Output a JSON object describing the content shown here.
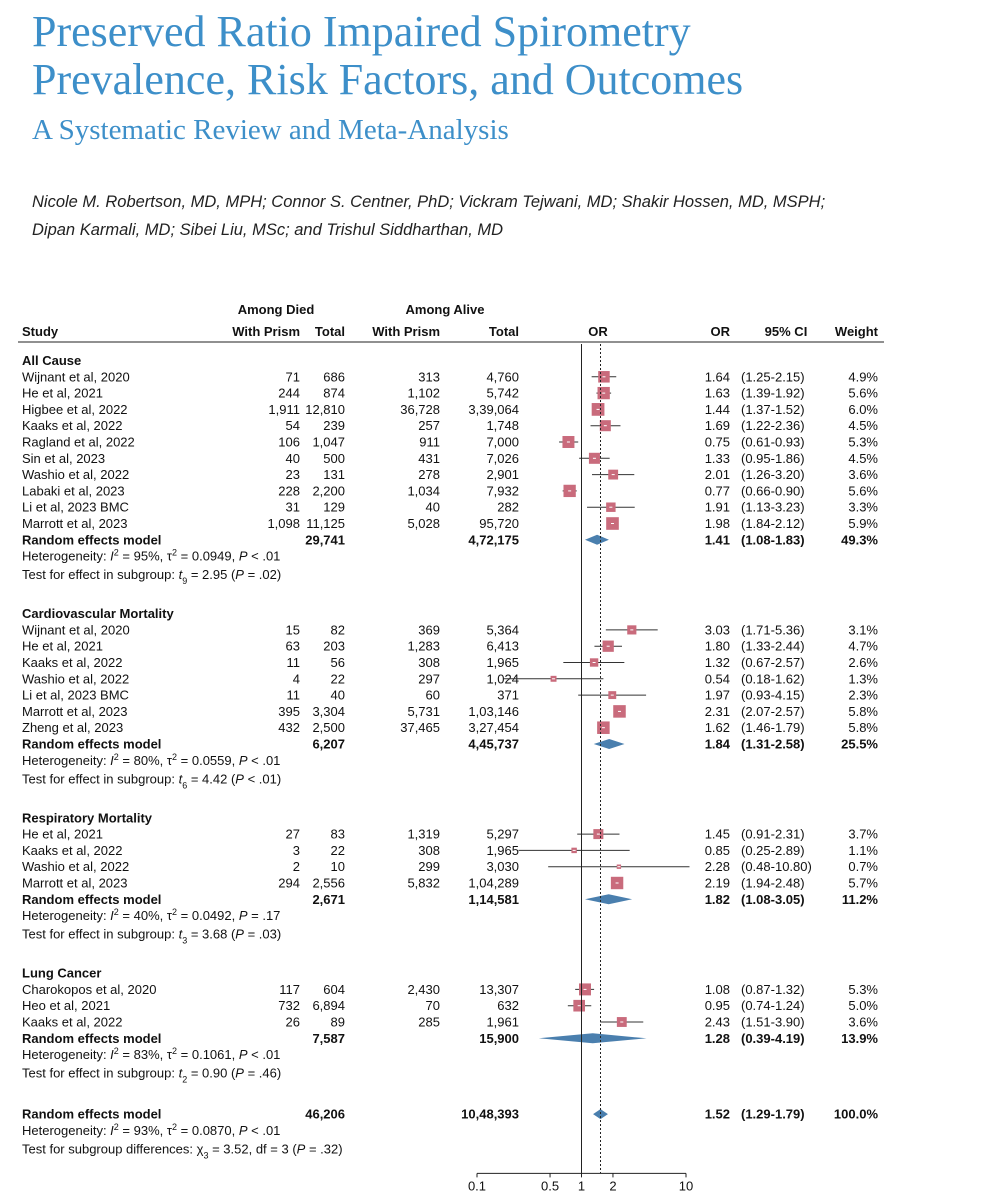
{
  "title_line1": "Preserved Ratio Impaired Spirometry",
  "title_line2": "Prevalence, Risk Factors, and Outcomes",
  "subtitle": "A Systematic Review and Meta-Analysis",
  "authors_line1": "Nicole M. Robertson, MD, MPH; Connor S. Centner, PhD; Vickram Tejwani, MD; Shakir Hossen, MD, MSPH;",
  "authors_line2": "Dipan Karmali, MD; Sibei Liu, MSc; and Trishul Siddharthan, MD",
  "colors": {
    "title": "#3d8fc9",
    "box": "#c96b7c",
    "diamond": "#4a7fae"
  },
  "chart_data": {
    "type": "forest",
    "headers": {
      "among_died": "Among Died",
      "among_alive": "Among Alive",
      "study": "Study",
      "with_prism_died": "With Prism",
      "total_died": "Total",
      "with_prism_alive": "With Prism",
      "total_alive": "Total",
      "or_plot": "OR",
      "or": "OR",
      "ci": "95% CI",
      "weight": "Weight"
    },
    "x_axis": {
      "scale": "log",
      "ticks": [
        "0.1",
        "0.5",
        "1",
        "2",
        "10"
      ],
      "tick_values": [
        0.1,
        0.5,
        1,
        2,
        10
      ],
      "range": [
        0.1,
        10
      ],
      "reference_line": 1,
      "overall_dotted_line": 1.52
    },
    "subgroups": [
      {
        "name": "All Cause",
        "studies": [
          {
            "study": "Wijnant et al, 2020",
            "died_prism": "71",
            "died_total": "686",
            "alive_prism": "313",
            "alive_total": "4,760",
            "or": 1.64,
            "lo": 1.25,
            "hi": 2.15,
            "or_text": "1.64",
            "ci_text": "(1.25-2.15)",
            "weight": "4.9%"
          },
          {
            "study": "He et al, 2021",
            "died_prism": "244",
            "died_total": "874",
            "alive_prism": "1,102",
            "alive_total": "5,742",
            "or": 1.63,
            "lo": 1.39,
            "hi": 1.92,
            "or_text": "1.63",
            "ci_text": "(1.39-1.92)",
            "weight": "5.6%"
          },
          {
            "study": "Higbee et al, 2022",
            "died_prism": "1,911",
            "died_total": "12,810",
            "alive_prism": "36,728",
            "alive_total": "3,39,064",
            "or": 1.44,
            "lo": 1.37,
            "hi": 1.52,
            "or_text": "1.44",
            "ci_text": "(1.37-1.52)",
            "weight": "6.0%"
          },
          {
            "study": "Kaaks et al, 2022",
            "died_prism": "54",
            "died_total": "239",
            "alive_prism": "257",
            "alive_total": "1,748",
            "or": 1.69,
            "lo": 1.22,
            "hi": 2.36,
            "or_text": "1.69",
            "ci_text": "(1.22-2.36)",
            "weight": "4.5%"
          },
          {
            "study": "Ragland et al, 2022",
            "died_prism": "106",
            "died_total": "1,047",
            "alive_prism": "911",
            "alive_total": "7,000",
            "or": 0.75,
            "lo": 0.61,
            "hi": 0.93,
            "or_text": "0.75",
            "ci_text": "(0.61-0.93)",
            "weight": "5.3%"
          },
          {
            "study": "Sin et al, 2023",
            "died_prism": "40",
            "died_total": "500",
            "alive_prism": "431",
            "alive_total": "7,026",
            "or": 1.33,
            "lo": 0.95,
            "hi": 1.86,
            "or_text": "1.33",
            "ci_text": "(0.95-1.86)",
            "weight": "4.5%"
          },
          {
            "study": "Washio et al, 2022",
            "died_prism": "23",
            "died_total": "131",
            "alive_prism": "278",
            "alive_total": "2,901",
            "or": 2.01,
            "lo": 1.26,
            "hi": 3.2,
            "or_text": "2.01",
            "ci_text": "(1.26-3.20)",
            "weight": "3.6%"
          },
          {
            "study": "Labaki et al, 2023",
            "died_prism": "228",
            "died_total": "2,200",
            "alive_prism": "1,034",
            "alive_total": "7,932",
            "or": 0.77,
            "lo": 0.66,
            "hi": 0.9,
            "or_text": "0.77",
            "ci_text": "(0.66-0.90)",
            "weight": "5.6%"
          },
          {
            "study": "Li et al, 2023 BMC",
            "died_prism": "31",
            "died_total": "129",
            "alive_prism": "40",
            "alive_total": "282",
            "or": 1.91,
            "lo": 1.13,
            "hi": 3.23,
            "or_text": "1.91",
            "ci_text": "(1.13-3.23)",
            "weight": "3.3%"
          },
          {
            "study": "Marrott et al, 2023",
            "died_prism": "1,098",
            "died_total": "11,125",
            "alive_prism": "5,028",
            "alive_total": "95,720",
            "or": 1.98,
            "lo": 1.84,
            "hi": 2.12,
            "or_text": "1.98",
            "ci_text": "(1.84-2.12)",
            "weight": "5.9%"
          }
        ],
        "summary": {
          "label": "Random effects model",
          "died_total": "29,741",
          "alive_total": "4,72,175",
          "or": 1.41,
          "lo": 1.08,
          "hi": 1.83,
          "or_text": "1.41",
          "ci_text": "(1.08-1.83)",
          "weight": "49.3%"
        },
        "heterogeneity": {
          "I2": "95%",
          "tau2": "0.0949",
          "p": "< .01"
        },
        "effect_test": {
          "df": "9",
          "t": "2.95",
          "p": "= .02"
        }
      },
      {
        "name": "Cardiovascular Mortality",
        "studies": [
          {
            "study": "Wijnant et al, 2020",
            "died_prism": "15",
            "died_total": "82",
            "alive_prism": "369",
            "alive_total": "5,364",
            "or": 3.03,
            "lo": 1.71,
            "hi": 5.36,
            "or_text": "3.03",
            "ci_text": "(1.71-5.36)",
            "weight": "3.1%"
          },
          {
            "study": "He et al, 2021",
            "died_prism": "63",
            "died_total": "203",
            "alive_prism": "1,283",
            "alive_total": "6,413",
            "or": 1.8,
            "lo": 1.33,
            "hi": 2.44,
            "or_text": "1.80",
            "ci_text": "(1.33-2.44)",
            "weight": "4.7%"
          },
          {
            "study": "Kaaks et al, 2022",
            "died_prism": "11",
            "died_total": "56",
            "alive_prism": "308",
            "alive_total": "1,965",
            "or": 1.32,
            "lo": 0.67,
            "hi": 2.57,
            "or_text": "1.32",
            "ci_text": "(0.67-2.57)",
            "weight": "2.6%"
          },
          {
            "study": "Washio et al, 2022",
            "died_prism": "4",
            "died_total": "22",
            "alive_prism": "297",
            "alive_total": "1,024",
            "or": 0.54,
            "lo": 0.18,
            "hi": 1.62,
            "or_text": "0.54",
            "ci_text": "(0.18-1.62)",
            "weight": "1.3%"
          },
          {
            "study": "Li et al, 2023 BMC",
            "died_prism": "11",
            "died_total": "40",
            "alive_prism": "60",
            "alive_total": "371",
            "or": 1.97,
            "lo": 0.93,
            "hi": 4.15,
            "or_text": "1.97",
            "ci_text": "(0.93-4.15)",
            "weight": "2.3%"
          },
          {
            "study": "Marrott et al, 2023",
            "died_prism": "395",
            "died_total": "3,304",
            "alive_prism": "5,731",
            "alive_total": "1,03,146",
            "or": 2.31,
            "lo": 2.07,
            "hi": 2.57,
            "or_text": "2.31",
            "ci_text": "(2.07-2.57)",
            "weight": "5.8%"
          },
          {
            "study": "Zheng et al, 2023",
            "died_prism": "432",
            "died_total": "2,500",
            "alive_prism": "37,465",
            "alive_total": "3,27,454",
            "or": 1.62,
            "lo": 1.46,
            "hi": 1.79,
            "or_text": "1.62",
            "ci_text": "(1.46-1.79)",
            "weight": "5.8%"
          }
        ],
        "summary": {
          "label": "Random effects model",
          "died_total": "6,207",
          "alive_total": "4,45,737",
          "or": 1.84,
          "lo": 1.31,
          "hi": 2.58,
          "or_text": "1.84",
          "ci_text": "(1.31-2.58)",
          "weight": "25.5%"
        },
        "heterogeneity": {
          "I2": "80%",
          "tau2": "0.0559",
          "p": "< .01"
        },
        "effect_test": {
          "df": "6",
          "t": "4.42",
          "p": "< .01"
        }
      },
      {
        "name": "Respiratory Mortality",
        "studies": [
          {
            "study": "He et al, 2021",
            "died_prism": "27",
            "died_total": "83",
            "alive_prism": "1,319",
            "alive_total": "5,297",
            "or": 1.45,
            "lo": 0.91,
            "hi": 2.31,
            "or_text": "1.45",
            "ci_text": "(0.91-2.31)",
            "weight": "3.7%"
          },
          {
            "study": "Kaaks et al, 2022",
            "died_prism": "3",
            "died_total": "22",
            "alive_prism": "308",
            "alive_total": "1,965",
            "or": 0.85,
            "lo": 0.25,
            "hi": 2.89,
            "or_text": "0.85",
            "ci_text": "(0.25-2.89)",
            "weight": "1.1%"
          },
          {
            "study": "Washio et al, 2022",
            "died_prism": "2",
            "died_total": "10",
            "alive_prism": "299",
            "alive_total": "3,030",
            "or": 2.28,
            "lo": 0.48,
            "hi": 10.8,
            "or_text": "2.28",
            "ci_text": "(0.48-10.80)",
            "weight": "0.7%"
          },
          {
            "study": "Marrott et al, 2023",
            "died_prism": "294",
            "died_total": "2,556",
            "alive_prism": "5,832",
            "alive_total": "1,04,289",
            "or": 2.19,
            "lo": 1.94,
            "hi": 2.48,
            "or_text": "2.19",
            "ci_text": "(1.94-2.48)",
            "weight": "5.7%"
          }
        ],
        "summary": {
          "label": "Random effects model",
          "died_total": "2,671",
          "alive_total": "1,14,581",
          "or": 1.82,
          "lo": 1.08,
          "hi": 3.05,
          "or_text": "1.82",
          "ci_text": "(1.08-3.05)",
          "weight": "11.2%"
        },
        "heterogeneity": {
          "I2": "40%",
          "tau2": "0.0492",
          "p": "= .17"
        },
        "effect_test": {
          "df": "3",
          "t": "3.68",
          "p": "= .03"
        }
      },
      {
        "name": "Lung Cancer",
        "studies": [
          {
            "study": "Charokopos et al, 2020",
            "died_prism": "117",
            "died_total": "604",
            "alive_prism": "2,430",
            "alive_total": "13,307",
            "or": 1.08,
            "lo": 0.87,
            "hi": 1.32,
            "or_text": "1.08",
            "ci_text": "(0.87-1.32)",
            "weight": "5.3%"
          },
          {
            "study": "Heo et al, 2021",
            "died_prism": "732",
            "died_total": "6,894",
            "alive_prism": "70",
            "alive_total": "632",
            "or": 0.95,
            "lo": 0.74,
            "hi": 1.24,
            "or_text": "0.95",
            "ci_text": "(0.74-1.24)",
            "weight": "5.0%"
          },
          {
            "study": "Kaaks et al, 2022",
            "died_prism": "26",
            "died_total": "89",
            "alive_prism": "285",
            "alive_total": "1,961",
            "or": 2.43,
            "lo": 1.51,
            "hi": 3.9,
            "or_text": "2.43",
            "ci_text": "(1.51-3.90)",
            "weight": "3.6%"
          }
        ],
        "summary": {
          "label": "Random effects model",
          "died_total": "7,587",
          "alive_total": "15,900",
          "or": 1.28,
          "lo": 0.39,
          "hi": 4.19,
          "or_text": "1.28",
          "ci_text": "(0.39-4.19)",
          "weight": "13.9%"
        },
        "heterogeneity": {
          "I2": "83%",
          "tau2": "0.1061",
          "p": "< .01"
        },
        "effect_test": {
          "df": "2",
          "t": "0.90",
          "p": "= .46"
        }
      }
    ],
    "overall": {
      "label": "Random effects model",
      "died_total": "46,206",
      "alive_total": "10,48,393",
      "or": 1.52,
      "lo": 1.29,
      "hi": 1.79,
      "or_text": "1.52",
      "ci_text": "(1.29-1.79)",
      "weight": "100.0%"
    },
    "overall_heterogeneity": {
      "I2": "93%",
      "tau2": "0.0870",
      "p": "< .01"
    },
    "subgroup_differences": {
      "chi2": "3.52",
      "df": "3",
      "df_text": "df = 3",
      "chi_df": "3",
      "p": "= .32"
    },
    "text": {
      "heterogeneity_prefix": "Heterogeneity: ",
      "i2_symbol": "I",
      "tau_symbol": "τ",
      "effect_test_prefix": "Test for effect in subgroup: ",
      "diff_prefix": "Test for subgroup differences: ",
      "chi_symbol": "χ"
    }
  }
}
